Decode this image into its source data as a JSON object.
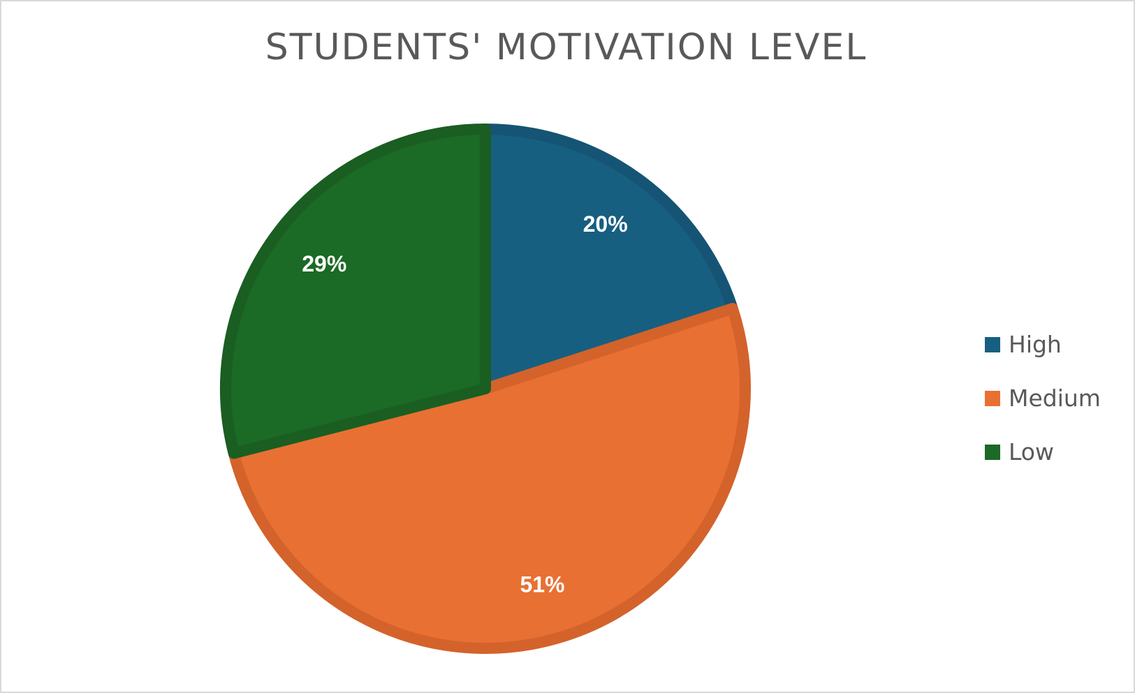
{
  "chart_data": {
    "type": "pie",
    "title": "STUDENTS' MOTIVATION LEVEL",
    "categories": [
      "High",
      "Medium",
      "Low"
    ],
    "values": [
      20,
      51,
      29
    ],
    "data_labels": [
      "20%",
      "51%",
      "29%"
    ],
    "colors": [
      "#175f80",
      "#e87033",
      "#1b6a25"
    ],
    "border_colors": [
      "#155474",
      "#d4622b",
      "#1a5e22"
    ],
    "start_angle_deg": 0,
    "direction": "clockwise",
    "legend_position": "right"
  }
}
